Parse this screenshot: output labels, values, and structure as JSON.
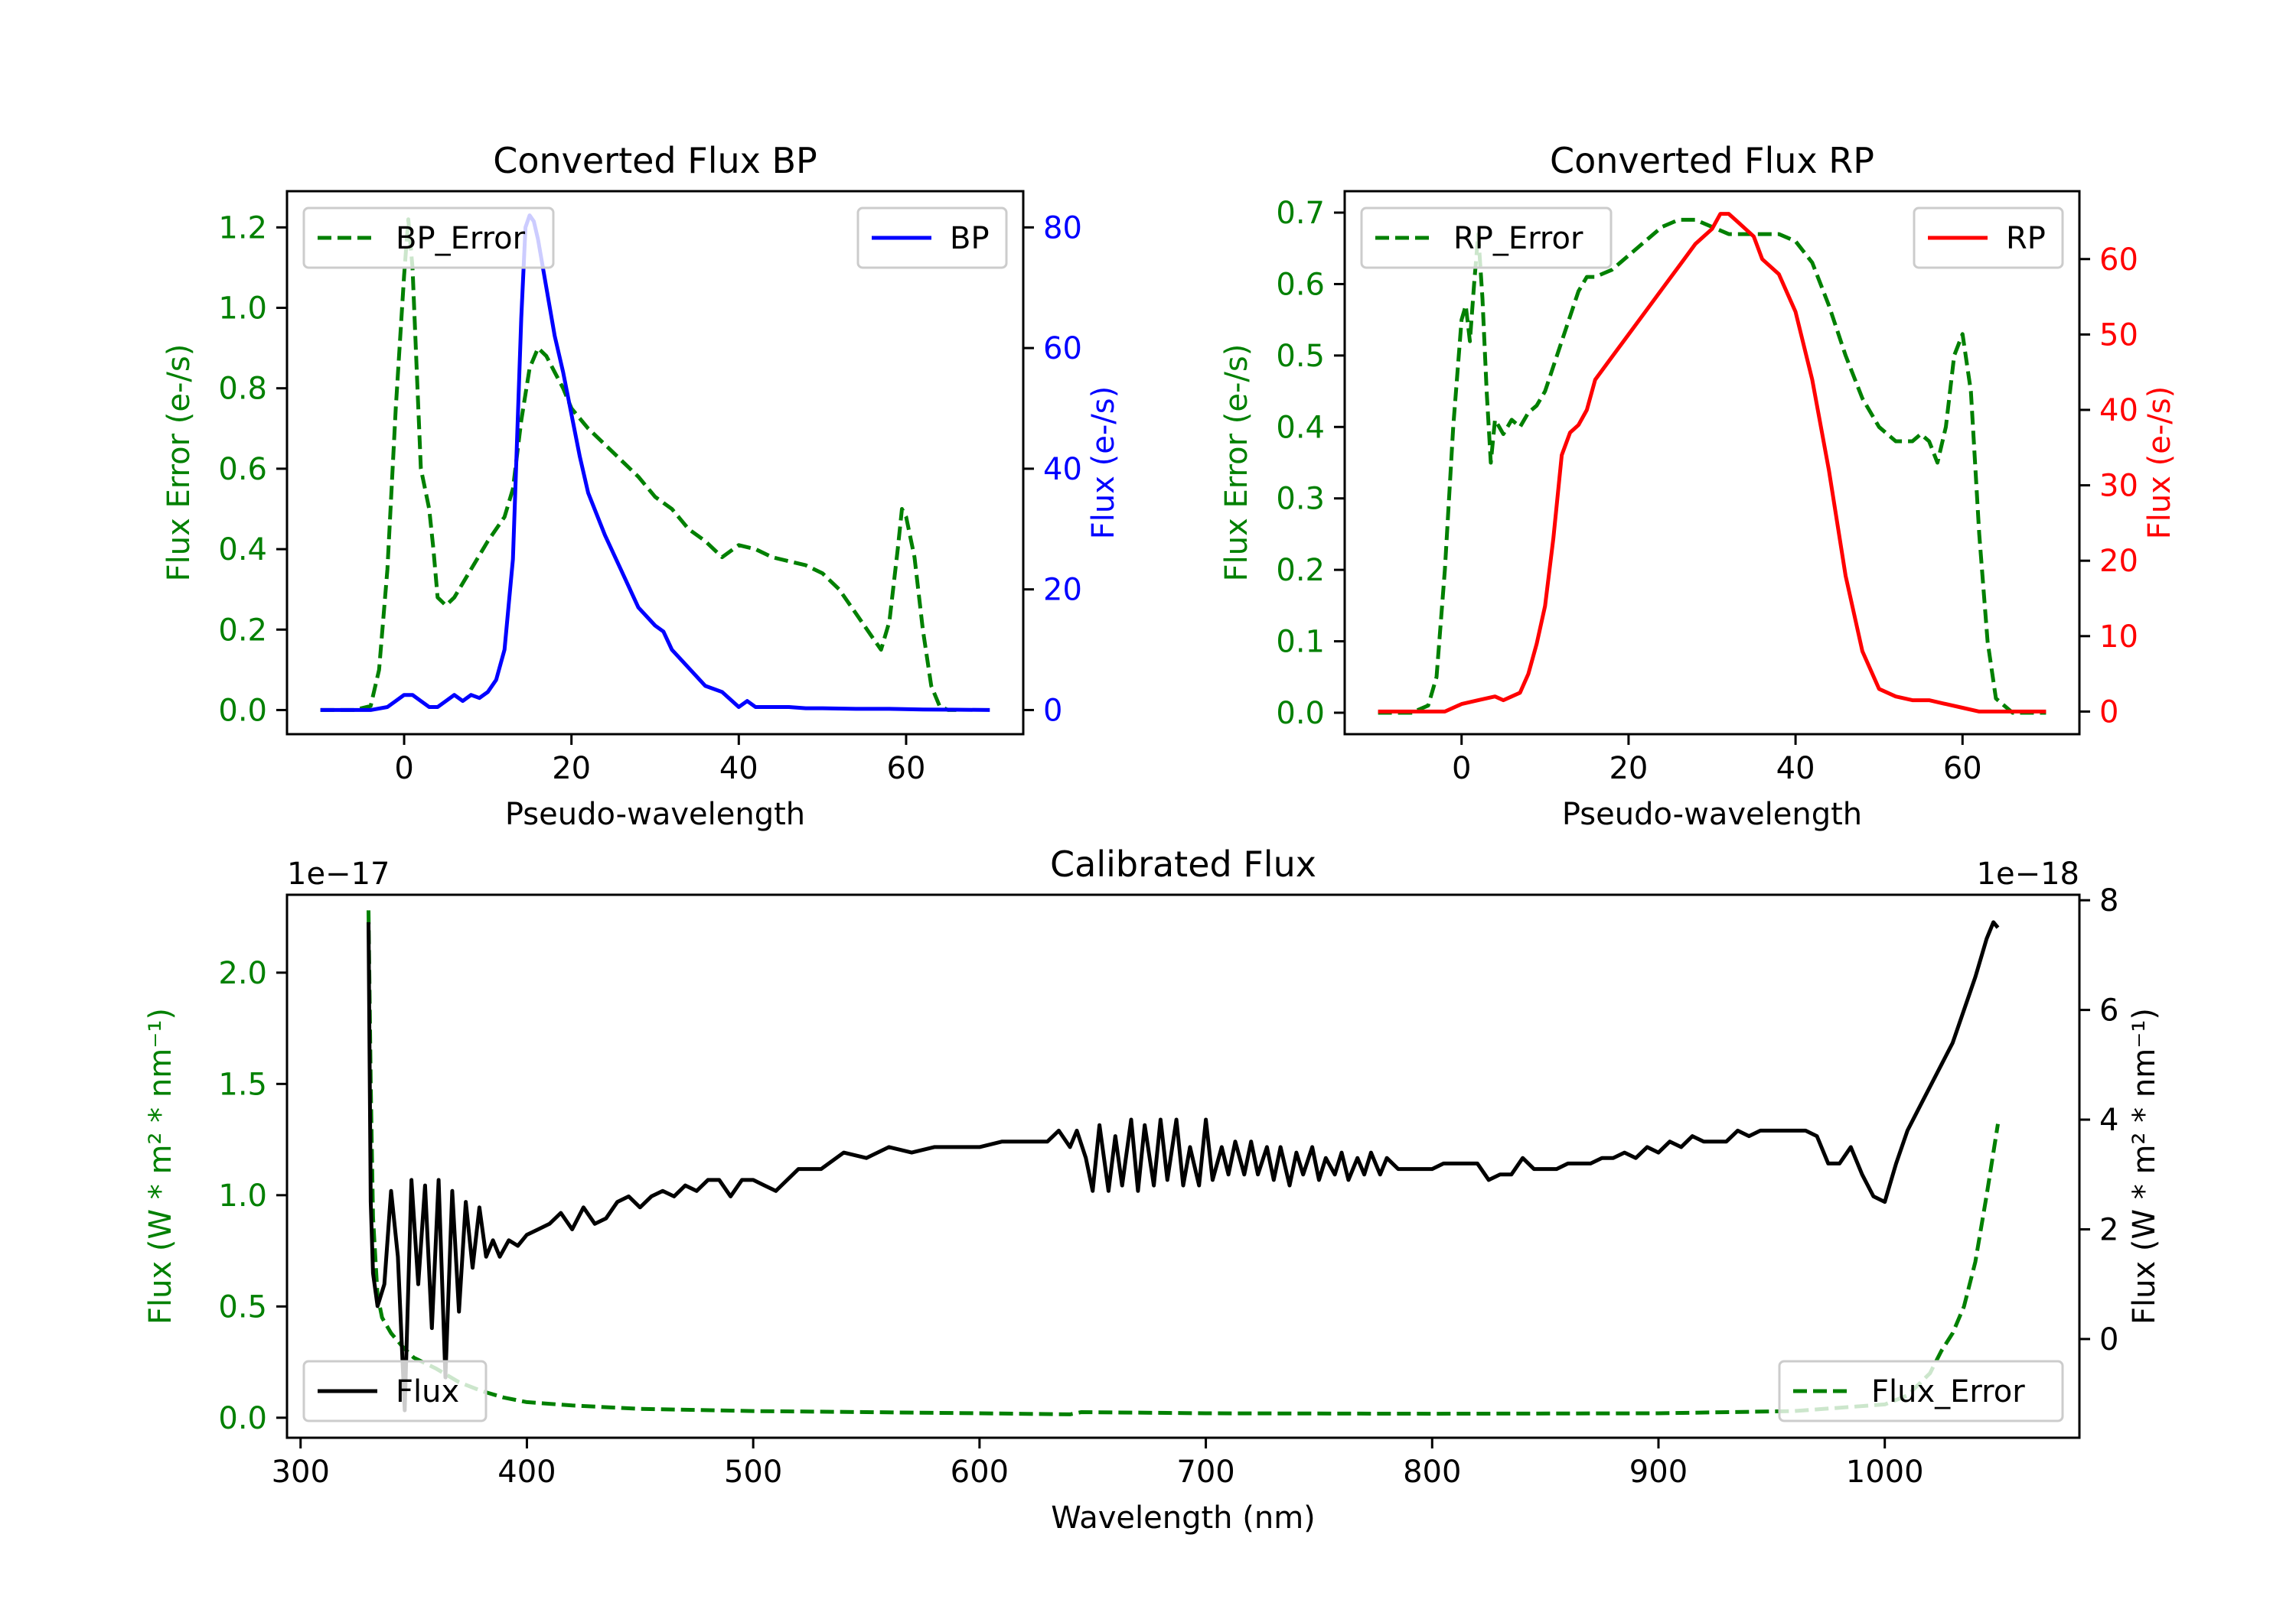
{
  "colors": {
    "bp": "#0000ff",
    "rp": "#ff0000",
    "error": "#008000",
    "flux": "#000000",
    "axis": "#000000"
  },
  "chart_data": [
    {
      "id": "bp",
      "type": "line",
      "title": "Converted Flux BP",
      "xlabel": "Pseudo-wavelength",
      "ylabel_left": "Flux Error (e-/s)",
      "ylabel_right": "Flux (e-/s)",
      "xlim": [
        -14,
        74
      ],
      "ylim_left": [
        -0.06,
        1.29
      ],
      "ylim_right": [
        -4,
        86
      ],
      "xticks": [
        0,
        20,
        40,
        60
      ],
      "yticks_left": [
        "0.0",
        "0.2",
        "0.4",
        "0.6",
        "0.8",
        "1.0",
        "1.2"
      ],
      "yticks_right": [
        "0",
        "20",
        "40",
        "60",
        "80"
      ],
      "legend_left": {
        "label": "BP_Error",
        "position": "upper left"
      },
      "legend_right": {
        "label": "BP",
        "position": "upper right"
      },
      "series": [
        {
          "name": "BP_Error",
          "axis": "left",
          "color_key": "error",
          "style": "dashed",
          "x": [
            -10,
            -6,
            -4,
            -3,
            -2,
            -1,
            0,
            0.5,
            1,
            1.5,
            2,
            2.5,
            3,
            3.5,
            4,
            5,
            6,
            8,
            10,
            12,
            13,
            14,
            15,
            16,
            17,
            18,
            19,
            20,
            22,
            24,
            26,
            28,
            30,
            32,
            34,
            36,
            38,
            40,
            42,
            44,
            46,
            48,
            50,
            52,
            54,
            56,
            57,
            58,
            59,
            59.5,
            60,
            61,
            62,
            63,
            64,
            65,
            66
          ],
          "y": [
            0.0,
            0.0,
            0.01,
            0.1,
            0.35,
            0.75,
            1.08,
            1.22,
            1.1,
            0.85,
            0.6,
            0.55,
            0.5,
            0.4,
            0.28,
            0.26,
            0.28,
            0.35,
            0.42,
            0.48,
            0.55,
            0.72,
            0.85,
            0.9,
            0.88,
            0.84,
            0.8,
            0.75,
            0.7,
            0.66,
            0.62,
            0.58,
            0.53,
            0.5,
            0.45,
            0.42,
            0.38,
            0.41,
            0.4,
            0.38,
            0.37,
            0.36,
            0.34,
            0.3,
            0.24,
            0.18,
            0.15,
            0.22,
            0.4,
            0.5,
            0.48,
            0.38,
            0.2,
            0.06,
            0.01,
            0.0,
            0.0
          ]
        },
        {
          "name": "BP",
          "axis": "right",
          "color_key": "bp",
          "style": "solid",
          "x": [
            -10,
            -6,
            -4,
            -2,
            -1,
            0,
            1,
            2,
            3,
            4,
            5,
            6,
            7,
            8,
            9,
            10,
            11,
            12,
            13,
            14,
            14.5,
            15,
            15.5,
            16,
            17,
            18,
            19,
            20,
            21,
            22,
            24,
            26,
            28,
            30,
            31,
            32,
            34,
            36,
            38,
            40,
            41,
            42,
            44,
            46,
            48,
            50,
            54,
            58,
            62,
            66,
            70
          ],
          "y": [
            0,
            0,
            0,
            0.5,
            1.5,
            2.5,
            2.5,
            1.5,
            0.5,
            0.5,
            1.5,
            2.5,
            1.5,
            2.5,
            2,
            3,
            5,
            10,
            25,
            65,
            80,
            82,
            81,
            78,
            70,
            62,
            56,
            49,
            42,
            36,
            29,
            23,
            17,
            14,
            13,
            10,
            7,
            4,
            3,
            0.5,
            1.5,
            0.5,
            0.5,
            0.5,
            0.3,
            0.3,
            0.2,
            0.2,
            0.1,
            0.05,
            0
          ]
        }
      ]
    },
    {
      "id": "rp",
      "type": "line",
      "title": "Converted Flux RP",
      "xlabel": "Pseudo-wavelength",
      "ylabel_left": "Flux Error (e-/s)",
      "ylabel_right": "Flux (e-/s)",
      "xlim": [
        -14,
        74
      ],
      "ylim_left": [
        -0.03,
        0.73
      ],
      "ylim_right": [
        -3,
        69
      ],
      "xticks": [
        0,
        20,
        40,
        60
      ],
      "yticks_left": [
        "0.0",
        "0.1",
        "0.2",
        "0.3",
        "0.4",
        "0.5",
        "0.6",
        "0.7"
      ],
      "yticks_right": [
        "0",
        "10",
        "20",
        "30",
        "40",
        "50",
        "60"
      ],
      "legend_left": {
        "label": "RP_Error",
        "position": "upper left"
      },
      "legend_right": {
        "label": "RP",
        "position": "upper right"
      },
      "series": [
        {
          "name": "RP_Error",
          "axis": "left",
          "color_key": "error",
          "style": "dashed",
          "x": [
            -10,
            -6,
            -4,
            -3,
            -2,
            -1,
            0,
            0.5,
            1,
            1.5,
            2,
            2.5,
            3,
            3.5,
            4,
            5,
            6,
            7,
            8,
            9,
            10,
            12,
            14,
            15,
            16,
            18,
            20,
            22,
            24,
            26,
            28,
            30,
            32,
            34,
            36,
            38,
            40,
            42,
            44,
            46,
            48,
            50,
            52,
            54,
            55,
            56,
            57,
            58,
            59,
            60,
            61,
            62,
            63,
            64,
            66,
            70
          ],
          "y": [
            0.0,
            0.0,
            0.01,
            0.05,
            0.2,
            0.4,
            0.55,
            0.57,
            0.52,
            0.6,
            0.67,
            0.58,
            0.45,
            0.35,
            0.41,
            0.39,
            0.41,
            0.4,
            0.42,
            0.43,
            0.45,
            0.52,
            0.59,
            0.61,
            0.61,
            0.62,
            0.64,
            0.66,
            0.68,
            0.69,
            0.69,
            0.68,
            0.67,
            0.67,
            0.67,
            0.67,
            0.66,
            0.63,
            0.57,
            0.5,
            0.44,
            0.4,
            0.38,
            0.38,
            0.39,
            0.38,
            0.35,
            0.4,
            0.5,
            0.53,
            0.45,
            0.25,
            0.1,
            0.02,
            0.0,
            0.0
          ]
        },
        {
          "name": "RP",
          "axis": "right",
          "color_key": "rp",
          "style": "solid",
          "x": [
            -10,
            -5,
            -2,
            0,
            2,
            4,
            5,
            6,
            7,
            8,
            9,
            10,
            11,
            12,
            13,
            14,
            15,
            16,
            18,
            20,
            22,
            24,
            26,
            28,
            30,
            31,
            32,
            33,
            34,
            35,
            36,
            38,
            40,
            42,
            44,
            46,
            48,
            50,
            52,
            54,
            56,
            58,
            60,
            62,
            64,
            70
          ],
          "y": [
            0,
            0,
            0,
            1,
            1.5,
            2,
            1.5,
            2,
            2.5,
            5,
            9,
            14,
            23,
            34,
            37,
            38,
            40,
            44,
            47,
            50,
            53,
            56,
            59,
            62,
            64,
            66,
            66,
            65,
            64,
            63,
            60,
            58,
            53,
            44,
            32,
            18,
            8,
            3,
            2,
            1.5,
            1.5,
            1,
            0.5,
            0,
            0,
            0
          ]
        }
      ]
    },
    {
      "id": "calibrated",
      "type": "line",
      "title": "Calibrated Flux",
      "xlabel": "Wavelength (nm)",
      "ylabel_left": "Flux (W * m² * nm⁻¹)",
      "ylabel_right": "Flux (W * m² * nm⁻¹)",
      "offset_left": "1e−17",
      "offset_right": "1e−18",
      "xlim": [
        294,
        1086
      ],
      "ylim_left": [
        -0.09,
        2.35
      ],
      "ylim_right": [
        -1.8,
        8.1
      ],
      "xticks": [
        300,
        400,
        500,
        600,
        700,
        800,
        900,
        1000
      ],
      "yticks_left": [
        "0.0",
        "0.5",
        "1.0",
        "1.5",
        "2.0"
      ],
      "yticks_right": [
        "0",
        "2",
        "4",
        "6",
        "8"
      ],
      "legend_left": {
        "label": "Flux",
        "position": "lower left"
      },
      "legend_right": {
        "label": "Flux_Error",
        "position": "lower right"
      },
      "series": [
        {
          "name": "Flux_Error",
          "axis": "left",
          "color_key": "error",
          "style": "dashed",
          "x": [
            330,
            331,
            332,
            334,
            336,
            340,
            345,
            350,
            360,
            370,
            380,
            390,
            400,
            420,
            450,
            500,
            550,
            600,
            640,
            645,
            700,
            800,
            900,
            960,
            1000,
            1010,
            1020,
            1025,
            1030,
            1035,
            1040,
            1045,
            1050
          ],
          "y": [
            2.28,
            1.5,
            0.9,
            0.55,
            0.45,
            0.38,
            0.32,
            0.27,
            0.22,
            0.16,
            0.12,
            0.09,
            0.07,
            0.055,
            0.04,
            0.03,
            0.025,
            0.02,
            0.015,
            0.025,
            0.02,
            0.018,
            0.02,
            0.03,
            0.06,
            0.1,
            0.2,
            0.3,
            0.38,
            0.5,
            0.7,
            1.0,
            1.32
          ]
        },
        {
          "name": "Flux",
          "axis": "right",
          "color_key": "flux",
          "style": "solid",
          "x": [
            330,
            331,
            332,
            334,
            337,
            340,
            343,
            346,
            349,
            352,
            355,
            358,
            361,
            364,
            367,
            370,
            373,
            376,
            379,
            382,
            385,
            388,
            392,
            396,
            400,
            405,
            410,
            415,
            420,
            425,
            430,
            435,
            440,
            445,
            450,
            455,
            460,
            465,
            470,
            475,
            480,
            485,
            490,
            495,
            500,
            505,
            510,
            520,
            530,
            540,
            550,
            560,
            570,
            580,
            590,
            600,
            610,
            620,
            630,
            635,
            640,
            643,
            647,
            650,
            653,
            657,
            660,
            663,
            667,
            670,
            673,
            677,
            680,
            683,
            687,
            690,
            693,
            697,
            700,
            703,
            707,
            710,
            713,
            717,
            720,
            723,
            727,
            730,
            733,
            737,
            740,
            743,
            747,
            750,
            753,
            757,
            760,
            763,
            767,
            770,
            773,
            777,
            780,
            785,
            790,
            795,
            800,
            805,
            810,
            815,
            820,
            825,
            830,
            835,
            840,
            845,
            850,
            855,
            860,
            865,
            870,
            875,
            880,
            885,
            890,
            895,
            900,
            905,
            910,
            915,
            920,
            925,
            930,
            935,
            940,
            945,
            950,
            955,
            960,
            965,
            970,
            975,
            980,
            985,
            990,
            995,
            1000,
            1005,
            1010,
            1015,
            1020,
            1025,
            1030,
            1035,
            1040,
            1045,
            1048,
            1050
          ],
          "y": [
            7.6,
            2.5,
            1.2,
            0.6,
            1.0,
            2.7,
            1.5,
            -1.3,
            2.9,
            1.0,
            2.8,
            0.2,
            2.9,
            -0.7,
            2.7,
            0.5,
            2.5,
            1.3,
            2.4,
            1.5,
            1.8,
            1.5,
            1.8,
            1.7,
            1.9,
            2.0,
            2.1,
            2.3,
            2.0,
            2.4,
            2.1,
            2.2,
            2.5,
            2.6,
            2.4,
            2.6,
            2.7,
            2.6,
            2.8,
            2.7,
            2.9,
            2.9,
            2.6,
            2.9,
            2.9,
            2.8,
            2.7,
            3.1,
            3.1,
            3.4,
            3.3,
            3.5,
            3.4,
            3.5,
            3.5,
            3.5,
            3.6,
            3.6,
            3.6,
            3.8,
            3.5,
            3.8,
            3.3,
            2.7,
            3.9,
            2.7,
            3.7,
            2.8,
            4.0,
            2.7,
            3.9,
            2.8,
            4.0,
            2.9,
            4.0,
            2.8,
            3.5,
            2.8,
            4.0,
            2.9,
            3.5,
            3.0,
            3.6,
            3.0,
            3.6,
            3.0,
            3.5,
            2.9,
            3.5,
            2.8,
            3.4,
            3.0,
            3.5,
            2.9,
            3.3,
            3.0,
            3.4,
            2.9,
            3.3,
            3.0,
            3.4,
            3.0,
            3.3,
            3.1,
            3.1,
            3.1,
            3.1,
            3.2,
            3.2,
            3.2,
            3.2,
            2.9,
            3.0,
            3.0,
            3.3,
            3.1,
            3.1,
            3.1,
            3.2,
            3.2,
            3.2,
            3.3,
            3.3,
            3.4,
            3.3,
            3.5,
            3.4,
            3.6,
            3.5,
            3.7,
            3.6,
            3.6,
            3.6,
            3.8,
            3.7,
            3.8,
            3.8,
            3.8,
            3.8,
            3.8,
            3.7,
            3.2,
            3.2,
            3.5,
            3.0,
            2.6,
            2.5,
            3.2,
            3.8,
            4.2,
            4.6,
            5.0,
            5.4,
            6.0,
            6.6,
            7.3,
            7.6,
            7.5
          ]
        }
      ]
    }
  ]
}
